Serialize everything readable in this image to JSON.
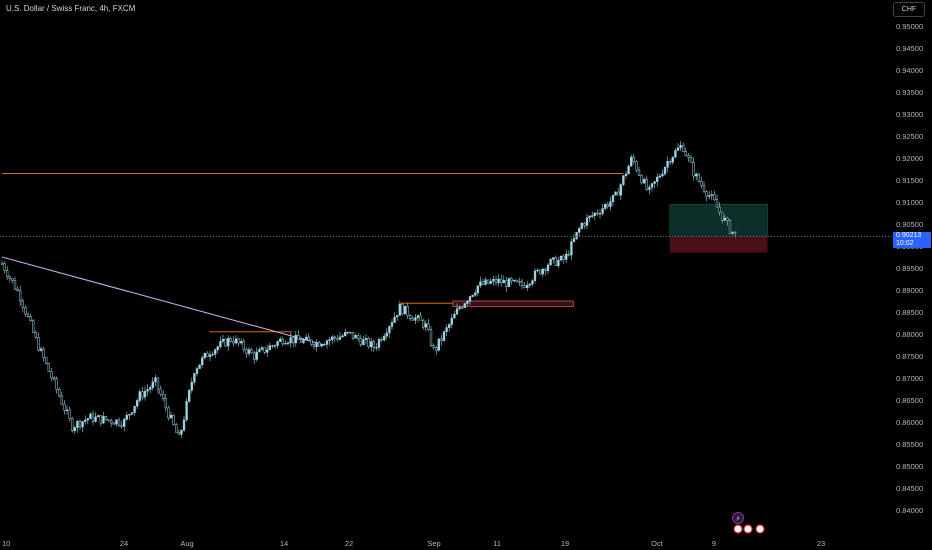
{
  "header": {
    "symbol_title": "U.S. Dollar / Swiss Franc, 4h, FXCM",
    "currency_button": "CHF"
  },
  "price_tag": {
    "price": "0.90213",
    "countdown": "10:02"
  },
  "colors": {
    "background": "#000000",
    "candle": "#9ed7e6",
    "orange_line": "#f57c00",
    "trend_line": "#c5a6e6",
    "price_tag": "#2962ff",
    "profit_zone": "#0d2f2a",
    "loss_zone": "#4a0f14"
  },
  "icons": [
    "lightning-icon",
    "us-flag-icon",
    "event-flag-icon"
  ],
  "chart_data": {
    "type": "candlestick",
    "title": "U.S. Dollar / Swiss Franc, 4h, FXCM",
    "ylim": [
      0.8375,
      0.9525
    ],
    "yticks": [
      "0.95000",
      "0.94500",
      "0.94000",
      "0.93500",
      "0.93000",
      "0.92500",
      "0.92000",
      "0.91500",
      "0.91000",
      "0.90500",
      "0.90000",
      "0.89500",
      "0.89000",
      "0.88500",
      "0.88000",
      "0.87500",
      "0.87000",
      "0.86500",
      "0.86000",
      "0.85500",
      "0.85000",
      "0.84500",
      "0.84000"
    ],
    "xticks": [
      "10",
      "24",
      "Aug",
      "14",
      "22",
      "Sep",
      "11",
      "19",
      "Oct",
      "9",
      "23"
    ],
    "series": [
      {
        "date": "Jul 10",
        "close": 0.896
      },
      {
        "date": "Jul 12",
        "close": 0.889
      },
      {
        "date": "Jul 14",
        "close": 0.878
      },
      {
        "date": "Jul 17",
        "close": 0.864
      },
      {
        "date": "Jul 18",
        "close": 0.859
      },
      {
        "date": "Jul 20",
        "close": 0.861
      },
      {
        "date": "Jul 24",
        "close": 0.86
      },
      {
        "date": "Jul 26",
        "close": 0.866
      },
      {
        "date": "Jul 28",
        "close": 0.869
      },
      {
        "date": "Jul 31",
        "close": 0.856
      },
      {
        "date": "Aug 2",
        "close": 0.872
      },
      {
        "date": "Aug 4",
        "close": 0.876
      },
      {
        "date": "Aug 7",
        "close": 0.879
      },
      {
        "date": "Aug 10",
        "close": 0.875
      },
      {
        "date": "Aug 14",
        "close": 0.879
      },
      {
        "date": "Aug 18",
        "close": 0.878
      },
      {
        "date": "Aug 22",
        "close": 0.88
      },
      {
        "date": "Aug 25",
        "close": 0.877
      },
      {
        "date": "Aug 28",
        "close": 0.886
      },
      {
        "date": "Aug 31",
        "close": 0.882
      },
      {
        "date": "Sep 1",
        "close": 0.876
      },
      {
        "date": "Sep 5",
        "close": 0.886
      },
      {
        "date": "Sep 8",
        "close": 0.891
      },
      {
        "date": "Sep 11",
        "close": 0.892
      },
      {
        "date": "Sep 14",
        "close": 0.891
      },
      {
        "date": "Sep 17",
        "close": 0.896
      },
      {
        "date": "Sep 19",
        "close": 0.897
      },
      {
        "date": "Sep 21",
        "close": 0.905
      },
      {
        "date": "Sep 25",
        "close": 0.911
      },
      {
        "date": "Sep 27",
        "close": 0.92
      },
      {
        "date": "Sep 29",
        "close": 0.912
      },
      {
        "date": "Oct 2",
        "close": 0.92
      },
      {
        "date": "Oct 4",
        "close": 0.923
      },
      {
        "date": "Oct 6",
        "close": 0.916
      },
      {
        "date": "Oct 9",
        "close": 0.91
      },
      {
        "date": "Oct 11",
        "close": 0.904
      },
      {
        "date": "Oct 12",
        "close": 0.9021
      }
    ],
    "horizontal_lines": [
      {
        "price": 0.9165,
        "from": "Jul 10",
        "to": "Sep 26",
        "color": "orange"
      },
      {
        "price": 0.8805,
        "from": "Aug 4",
        "to": "Aug 15",
        "color": "orange"
      },
      {
        "price": 0.887,
        "from": "Aug 28",
        "to": "Sep 4",
        "color": "orange"
      }
    ],
    "trend_line": {
      "from": {
        "date": "Jul 10",
        "price": 0.8975
      },
      "to": {
        "date": "Aug 19",
        "price": 0.8775
      }
    },
    "zones": [
      {
        "kind": "supply",
        "from": "Sep 4",
        "to": "Sep 20",
        "price_top": 0.8875,
        "price_bottom": 0.8862
      },
      {
        "kind": "profit",
        "from": "Oct 2",
        "to": "Oct 16",
        "price_top": 0.9095,
        "price_bottom": 0.9021
      },
      {
        "kind": "loss",
        "from": "Oct 2",
        "to": "Oct 16",
        "price_top": 0.9021,
        "price_bottom": 0.8985
      }
    ],
    "last_price": 0.90213,
    "grid": false
  }
}
